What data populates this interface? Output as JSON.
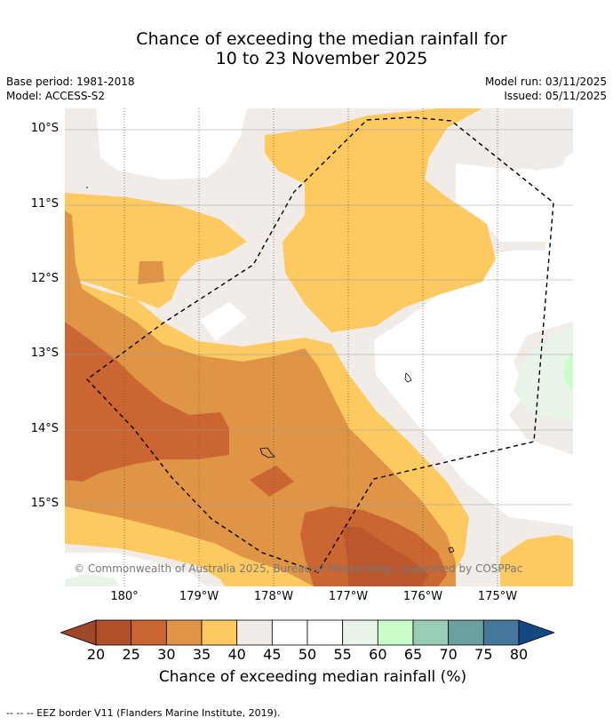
{
  "title_line1": "Chance of exceeding the median rainfall for",
  "title_line2": "10 to 23 November 2025",
  "base_period": "Base period: 1981-2018",
  "model": "Model: ACCESS-S2",
  "model_run": "Model run: 03/11/2025",
  "issued": "Issued: 05/11/2025",
  "lat_labels": [
    "10°S",
    "11°S",
    "12°S",
    "13°S",
    "14°S",
    "15°S"
  ],
  "lon_labels": [
    "180°",
    "179°W",
    "178°W",
    "177°W",
    "176°W",
    "175°W"
  ],
  "copyright": "© Commonwealth of Australia 2025, Bureau of Meteorology, supported by COSPPac",
  "colorbar": {
    "ticks": [
      "20",
      "25",
      "30",
      "35",
      "40",
      "45",
      "50",
      "55",
      "60",
      "65",
      "70",
      "75",
      "80"
    ],
    "colors": [
      "#a0472a",
      "#b24f2b",
      "#cb6532",
      "#e09446",
      "#fdc961",
      "#f1ece7",
      "#ffffff",
      "#ffffff",
      "#e9f4e9",
      "#cbfdcb",
      "#99cdb5",
      "#6aa19e",
      "#44779b",
      "#144883"
    ],
    "label": "Chance of exceeding median rainfall (%)"
  },
  "footer": "--  --  -- EEZ border V11 (Flanders Marine Institute, 2019).",
  "colors": {
    "c25_30": "#cb6532",
    "c30_35": "#e09446",
    "c35_40": "#fdc961",
    "c40_45": "#f1ece7",
    "c45_55": "#ffffff",
    "c55_60": "#e9f4e9",
    "c60_65": "#cbfdcb"
  }
}
